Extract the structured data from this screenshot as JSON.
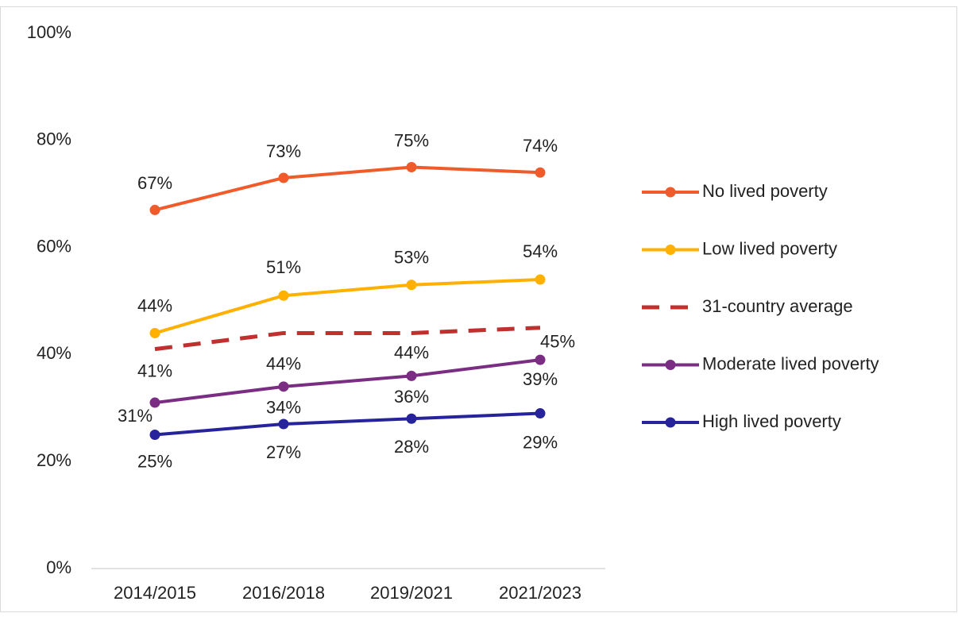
{
  "chart_data": {
    "type": "line",
    "categories": [
      "2014/2015",
      "2016/2018",
      "2019/2021",
      "2021/2023"
    ],
    "ylim": [
      0,
      100
    ],
    "yticks": [
      {
        "value": 0,
        "label": "0%"
      },
      {
        "value": 20,
        "label": "20%"
      },
      {
        "value": 40,
        "label": "40%"
      },
      {
        "value": 60,
        "label": "60%"
      },
      {
        "value": 80,
        "label": "80%"
      },
      {
        "value": 100,
        "label": "100%"
      }
    ],
    "grid": false,
    "legend": "right",
    "series": [
      {
        "name": "No lived poverty",
        "color": "#ef5b2b",
        "dashed": false,
        "markers": true,
        "values": [
          67,
          73,
          75,
          74
        ],
        "value_labels": [
          "67%",
          "73%",
          "75%",
          "74%"
        ]
      },
      {
        "name": "Low lived poverty",
        "color": "#ffb000",
        "dashed": false,
        "markers": true,
        "values": [
          44,
          51,
          53,
          54
        ],
        "value_labels": [
          "44%",
          "51%",
          "53%",
          "54%"
        ]
      },
      {
        "name": "31-country average",
        "color": "#c0302f",
        "dashed": true,
        "markers": false,
        "values": [
          41,
          44,
          44,
          45
        ],
        "value_labels": [
          "41%",
          "44%",
          "44%",
          "45%"
        ]
      },
      {
        "name": "Moderate lived poverty",
        "color": "#7b2c83",
        "dashed": false,
        "markers": true,
        "values": [
          31,
          34,
          36,
          39
        ],
        "value_labels": [
          "31%",
          "34%",
          "36%",
          "39%"
        ]
      },
      {
        "name": "High lived poverty",
        "color": "#27239a",
        "dashed": false,
        "markers": true,
        "values": [
          25,
          27,
          28,
          29
        ],
        "value_labels": [
          "25%",
          "27%",
          "28%",
          "29%"
        ]
      }
    ]
  }
}
